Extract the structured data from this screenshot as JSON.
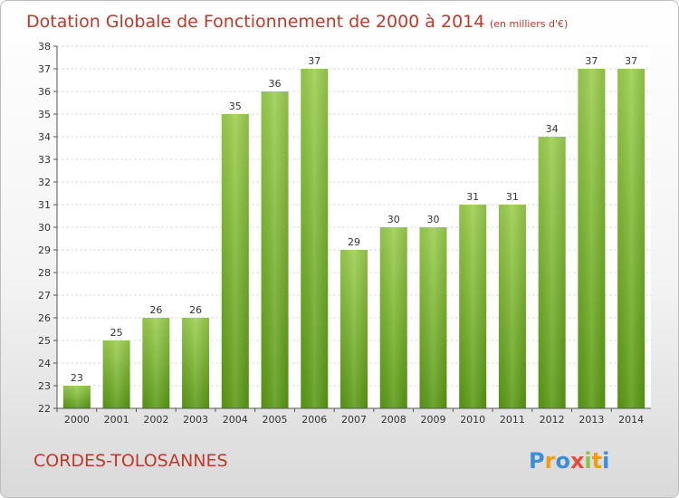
{
  "chart_data": {
    "type": "bar",
    "title": "Dotation Globale de Fonctionnement de 2000 à 2014",
    "subtitle": "(en milliers d'€)",
    "categories": [
      "2000",
      "2001",
      "2002",
      "2003",
      "2004",
      "2005",
      "2006",
      "2007",
      "2008",
      "2009",
      "2010",
      "2011",
      "2012",
      "2013",
      "2014"
    ],
    "values": [
      23,
      25,
      26,
      26,
      35,
      36,
      37,
      29,
      30,
      30,
      31,
      31,
      34,
      37,
      37
    ],
    "ylim": [
      22,
      38
    ],
    "yticks": [
      22,
      23,
      24,
      25,
      26,
      27,
      28,
      29,
      30,
      31,
      32,
      33,
      34,
      35,
      36,
      37,
      38
    ],
    "grid": true,
    "bar_color_top": "#9ccf4f",
    "bar_color_bottom": "#5a9a14"
  },
  "footer": {
    "commune": "CORDES-TOLOSANNES",
    "logo": "Proxiti"
  }
}
